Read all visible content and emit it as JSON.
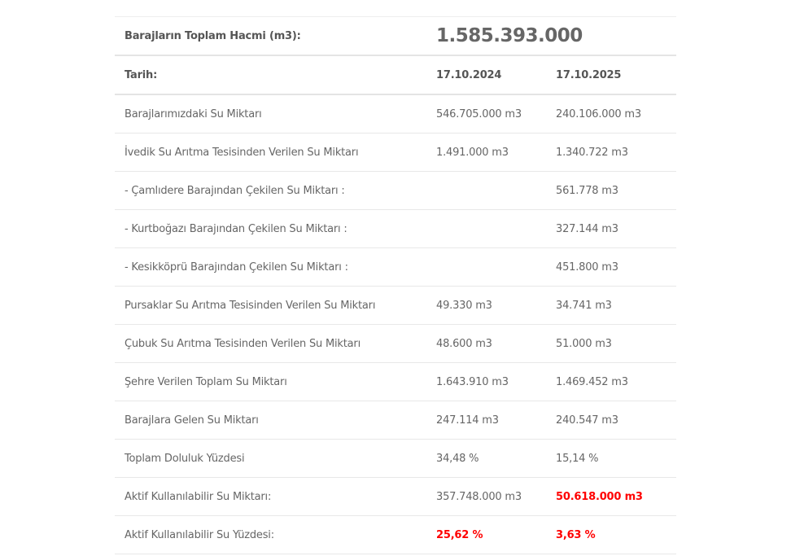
{
  "summary": {
    "label": "Barajların Toplam Hacmi (m3):",
    "value": "1.585.393.000"
  },
  "header": {
    "label": "Tarih:",
    "date1": "17.10.2024",
    "date2": "17.10.2025"
  },
  "colors": {
    "alert": "#ff0000"
  },
  "rows": [
    {
      "label": "Barajlarımızdaki Su Miktarı",
      "v1": "546.705.000 m3",
      "v2": "240.106.000 m3"
    },
    {
      "label": "İvedik Su Arıtma Tesisinden Verilen Su Miktarı",
      "v1": "1.491.000 m3",
      "v2": "1.340.722 m3"
    },
    {
      "label": "- Çamlıdere Barajından Çekilen Su Miktarı :",
      "v1": "",
      "v2": "561.778 m3"
    },
    {
      "label": "- Kurtboğazı Barajından Çekilen Su Miktarı :",
      "v1": "",
      "v2": "327.144 m3"
    },
    {
      "label": "- Kesikköprü Barajından Çekilen Su Miktarı :",
      "v1": "",
      "v2": "451.800 m3"
    },
    {
      "label": "Pursaklar Su Arıtma Tesisinden Verilen Su Miktarı",
      "v1": "49.330 m3",
      "v2": "34.741 m3"
    },
    {
      "label": "Çubuk Su Arıtma Tesisinden Verilen Su Miktarı",
      "v1": "48.600 m3",
      "v2": "51.000 m3"
    },
    {
      "label": "Şehre Verilen Toplam Su Miktarı",
      "v1": "1.643.910 m3",
      "v2": "1.469.452 m3"
    },
    {
      "label": "Barajlara Gelen Su Miktarı",
      "v1": "247.114 m3",
      "v2": "240.547 m3"
    },
    {
      "label": "Toplam Doluluk Yüzdesi",
      "v1": "34,48 %",
      "v2": "15,14 %"
    },
    {
      "label": "Aktif Kullanılabilir Su Miktarı:",
      "v1": "357.748.000 m3",
      "v2": "50.618.000 m3",
      "v2_alert": true
    },
    {
      "label": "Aktif Kullanılabilir Su Yüzdesi:",
      "v1": "25,62 %",
      "v2": "3,63 %",
      "v1_alert": true,
      "v2_alert": true
    }
  ]
}
